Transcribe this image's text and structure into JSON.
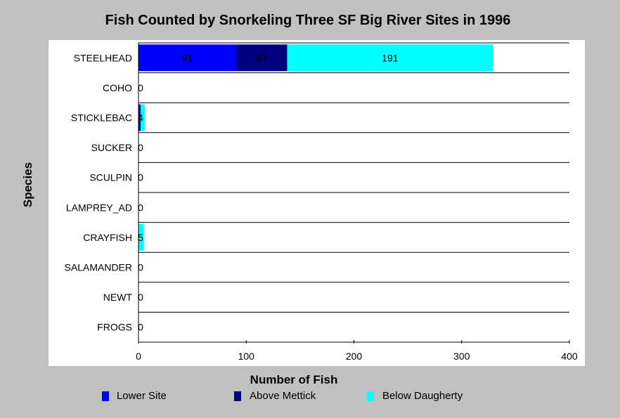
{
  "chart_data": {
    "type": "bar",
    "orientation": "horizontal",
    "stacked": true,
    "title": "Fish Counted by Snorkeling Three SF Big River Sites in 1996",
    "xlabel": "Number of Fish",
    "ylabel": "Species",
    "xlim": [
      0,
      400
    ],
    "xticks": [
      0,
      100,
      200,
      300,
      400
    ],
    "grid": "horizontal",
    "legend_position": "bottom",
    "categories": [
      "STEELHEAD",
      "COHO",
      "STICKLEBAC",
      "SUCKER",
      "SCULPIN",
      "LAMPREY_AD",
      "CRAYFISH",
      "SALAMANDER",
      "NEWT",
      "FROGS"
    ],
    "series": [
      {
        "name": "Lower Site",
        "color": "#0000ff",
        "values": [
          91,
          0,
          1,
          0,
          0,
          0,
          0,
          0,
          0,
          0
        ]
      },
      {
        "name": "Above Mettick",
        "color": "#000080",
        "values": [
          47,
          0,
          1,
          0,
          0,
          0,
          0,
          0,
          0,
          0
        ]
      },
      {
        "name": "Below Daugherty",
        "color": "#00ffff",
        "values": [
          191,
          0,
          4,
          0,
          0,
          0,
          5,
          0,
          0,
          0
        ]
      }
    ],
    "data_labels": [
      [
        "91",
        "47",
        "191"
      ],
      [
        "0"
      ],
      [
        "4"
      ],
      [
        "0"
      ],
      [
        "0"
      ],
      [
        "0"
      ],
      [
        "5"
      ],
      [
        "0"
      ],
      [
        "0"
      ],
      [
        "0"
      ]
    ]
  }
}
